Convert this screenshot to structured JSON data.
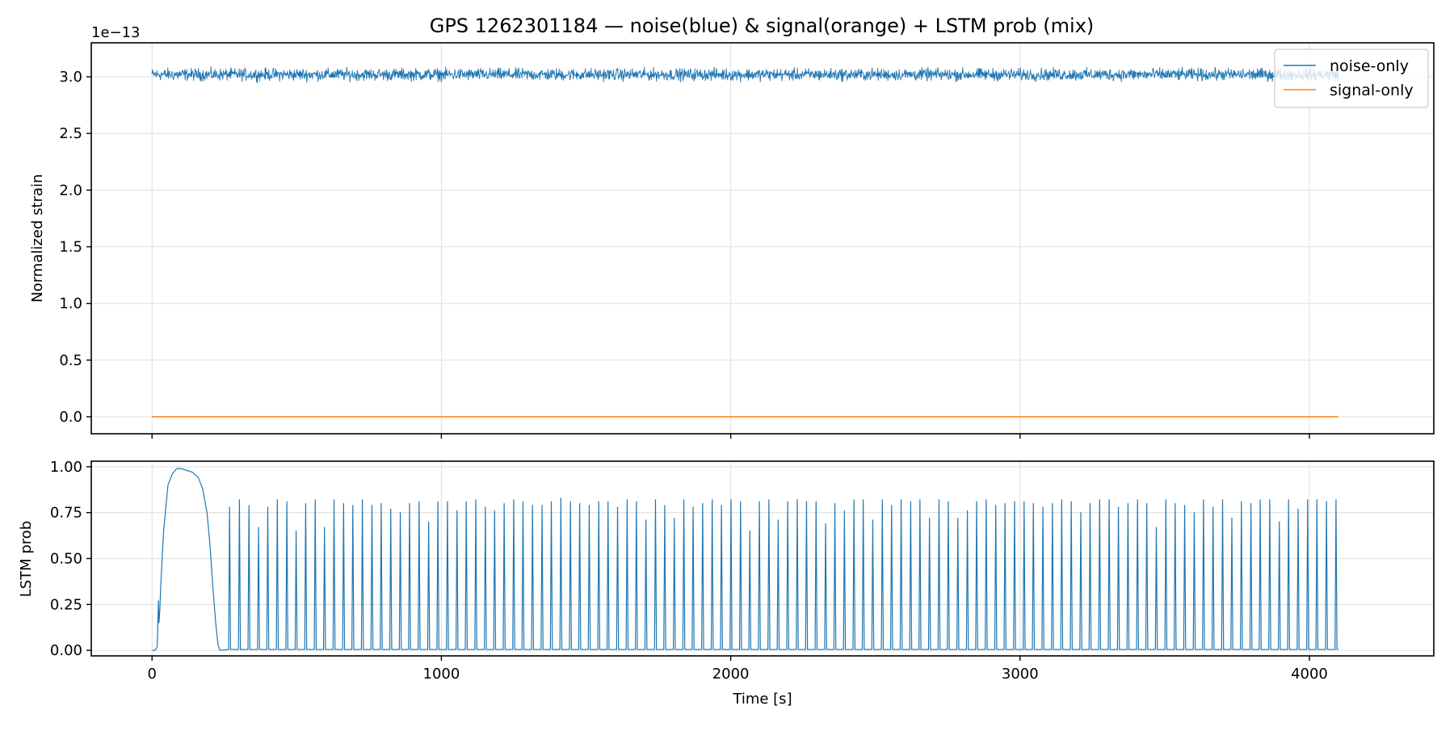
{
  "chart_data": {
    "title": "GPS 1262301184 — noise(blue) & signal(orange) + LSTM prob (mix)",
    "xlabel": "Time [s]",
    "xlim": [
      -210,
      4430
    ],
    "x_ticks": [
      0,
      1000,
      2000,
      3000,
      4000
    ],
    "x_tick_labels": [
      "0",
      "1000",
      "2000",
      "3000",
      "4000"
    ],
    "grid": true,
    "panels": [
      {
        "type": "line",
        "ylabel": "Normalized strain",
        "y_offset_text": "1e−13",
        "ylim": [
          -0.15,
          3.3
        ],
        "y_ticks": [
          0.0,
          0.5,
          1.0,
          1.5,
          2.0,
          2.5,
          3.0
        ],
        "y_tick_labels": [
          "0.0",
          "0.5",
          "1.0",
          "1.5",
          "2.0",
          "2.5",
          "3.0"
        ],
        "legend_position": "top-right",
        "series": [
          {
            "name": "noise-only",
            "color": "#1f77b4",
            "x_range": [
              0,
              4100
            ],
            "baseline": 3.02,
            "band_low": 2.94,
            "band_high": 3.1
          },
          {
            "name": "signal-only",
            "color": "#ff7f0e",
            "x": [
              0,
              4100
            ],
            "y": [
              0.0,
              0.0
            ]
          }
        ]
      },
      {
        "type": "line",
        "ylabel": "LSTM prob",
        "ylim": [
          -0.03,
          1.03
        ],
        "y_ticks": [
          0.0,
          0.25,
          0.5,
          0.75,
          1.0
        ],
        "y_tick_labels": [
          "0.00",
          "0.25",
          "0.50",
          "0.75",
          "1.00"
        ],
        "series": [
          {
            "name": "",
            "color": "#1f77b4",
            "bump_x": [
              0,
              10,
              18,
              22,
              24,
              27,
              30,
              40,
              55,
              70,
              85,
              100,
              120,
              140,
              160,
              175,
              190,
              200,
              210,
              220,
              228,
              235
            ],
            "bump_y": [
              0.0,
              0.0,
              0.02,
              0.27,
              0.15,
              0.22,
              0.35,
              0.65,
              0.9,
              0.96,
              0.99,
              0.99,
              0.98,
              0.97,
              0.94,
              0.88,
              0.75,
              0.58,
              0.35,
              0.15,
              0.03,
              0.0
            ],
            "spike_x": [
              268,
              302,
              335,
              368,
              400,
              433,
              466,
              498,
              531,
              564,
              596,
              629,
              662,
              694,
              727,
              760,
              792,
              825,
              858,
              890,
              923,
              956,
              988,
              1021,
              1054,
              1086,
              1119,
              1152,
              1184,
              1217,
              1250,
              1282,
              1315,
              1348,
              1380,
              1413,
              1446,
              1478,
              1511,
              1544,
              1576,
              1609,
              1642,
              1674,
              1707,
              1740,
              1772,
              1805,
              1838,
              1870,
              1903,
              1936,
              1968,
              2001,
              2034,
              2066,
              2099,
              2132,
              2164,
              2197,
              2230,
              2262,
              2295,
              2328,
              2360,
              2393,
              2426,
              2458,
              2491,
              2524,
              2556,
              2589,
              2622,
              2654,
              2687,
              2720,
              2752,
              2785,
              2818,
              2850,
              2883,
              2916,
              2948,
              2981,
              3014,
              3046,
              3079,
              3112,
              3144,
              3177,
              3210,
              3242,
              3275,
              3308,
              3340,
              3373,
              3406,
              3438,
              3471,
              3504,
              3536,
              3569,
              3602,
              3634,
              3667,
              3700,
              3732,
              3765,
              3798,
              3830,
              3863,
              3896,
              3928,
              3961,
              3994,
              4026,
              4059,
              4092
            ],
            "spike_y": [
              0.78,
              0.82,
              0.79,
              0.67,
              0.78,
              0.82,
              0.81,
              0.65,
              0.8,
              0.82,
              0.67,
              0.82,
              0.8,
              0.79,
              0.82,
              0.79,
              0.8,
              0.77,
              0.75,
              0.8,
              0.81,
              0.7,
              0.81,
              0.81,
              0.76,
              0.81,
              0.82,
              0.78,
              0.76,
              0.8,
              0.82,
              0.81,
              0.79,
              0.79,
              0.81,
              0.83,
              0.81,
              0.8,
              0.79,
              0.81,
              0.81,
              0.78,
              0.82,
              0.81,
              0.71,
              0.82,
              0.79,
              0.72,
              0.82,
              0.78,
              0.8,
              0.82,
              0.79,
              0.82,
              0.81,
              0.65,
              0.81,
              0.82,
              0.71,
              0.81,
              0.82,
              0.81,
              0.81,
              0.69,
              0.8,
              0.76,
              0.82,
              0.82,
              0.71,
              0.82,
              0.79,
              0.82,
              0.81,
              0.82,
              0.72,
              0.82,
              0.81,
              0.72,
              0.76,
              0.81,
              0.82,
              0.79,
              0.8,
              0.81,
              0.81,
              0.8,
              0.78,
              0.8,
              0.82,
              0.81,
              0.75,
              0.8,
              0.82,
              0.82,
              0.78,
              0.8,
              0.82,
              0.8,
              0.67,
              0.82,
              0.8,
              0.79,
              0.75,
              0.82,
              0.78,
              0.82,
              0.72,
              0.81,
              0.8,
              0.82,
              0.82,
              0.7,
              0.82,
              0.77,
              0.82,
              0.82,
              0.81,
              0.82
            ]
          }
        ]
      }
    ]
  }
}
